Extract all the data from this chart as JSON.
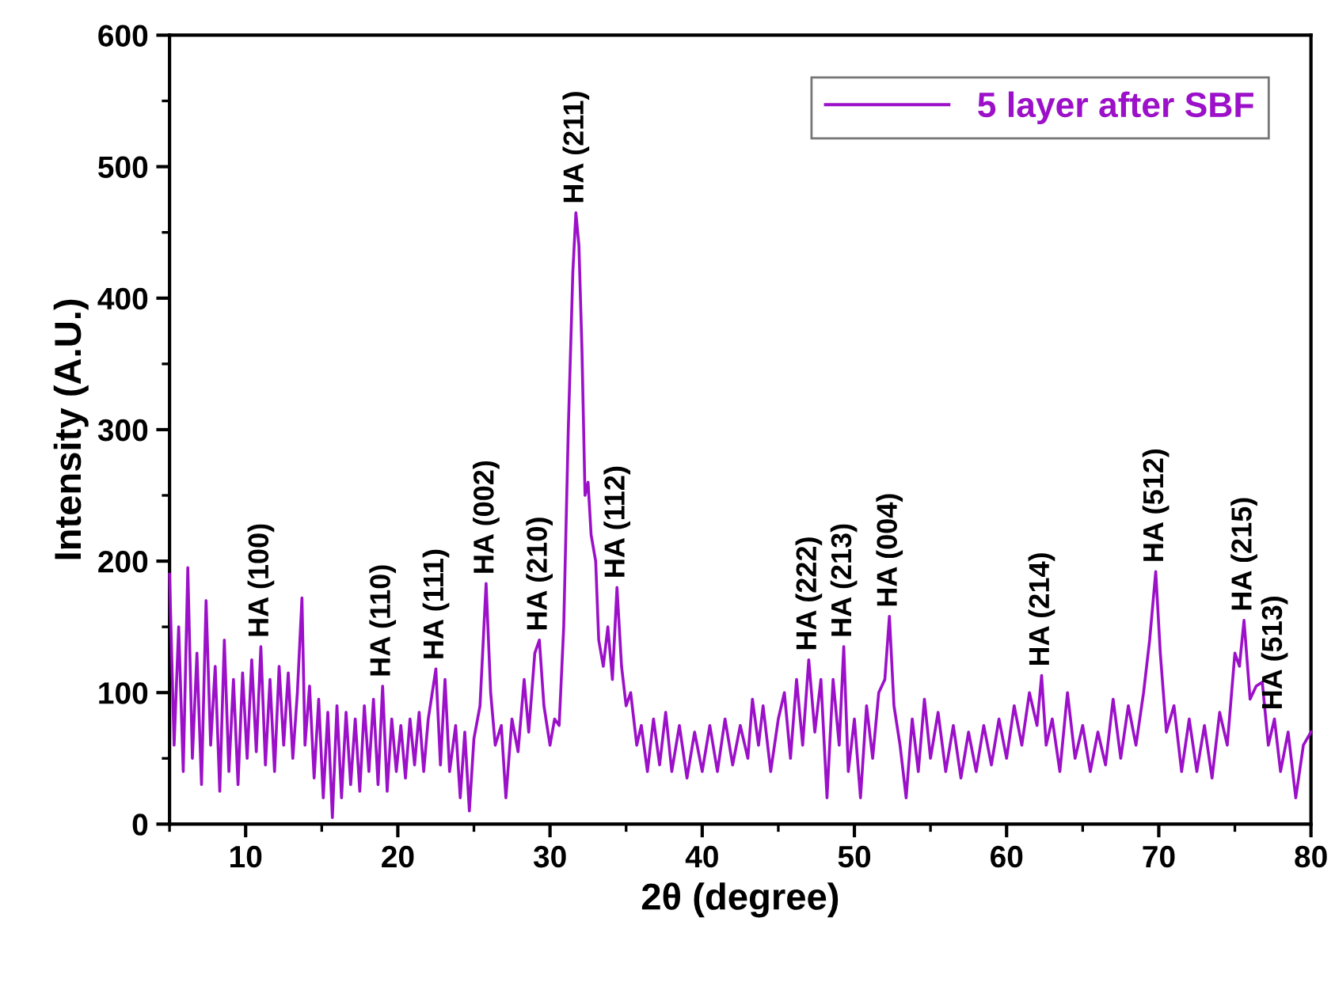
{
  "chart_data": {
    "type": "line",
    "xlabel": "2θ (degree)",
    "ylabel": "Intensity (A.U.)",
    "xlim": [
      5,
      80
    ],
    "xticks": [
      10,
      20,
      30,
      40,
      50,
      60,
      70,
      80
    ],
    "ylim": [
      0,
      600
    ],
    "yticks": [
      0,
      100,
      200,
      300,
      400,
      500,
      600
    ],
    "grid": false,
    "legend": "top right",
    "marker": "none",
    "line_style": "solid",
    "series": [
      {
        "name": "5 layer after SBF",
        "color": "#9b10c8",
        "x": [
          5,
          5.3,
          5.6,
          5.9,
          6.2,
          6.5,
          6.8,
          7.1,
          7.4,
          7.7,
          8.0,
          8.3,
          8.6,
          8.9,
          9.2,
          9.5,
          9.8,
          10.1,
          10.4,
          10.7,
          11.0,
          11.3,
          11.6,
          11.9,
          12.2,
          12.5,
          12.8,
          13.1,
          13.4,
          13.7,
          13.9,
          14.2,
          14.5,
          14.8,
          15.1,
          15.4,
          15.7,
          16.0,
          16.3,
          16.6,
          16.9,
          17.2,
          17.5,
          17.8,
          18.1,
          18.4,
          18.7,
          19.0,
          19.3,
          19.6,
          19.9,
          20.2,
          20.5,
          20.8,
          21.1,
          21.4,
          21.7,
          22.0,
          22.5,
          22.8,
          23.1,
          23.4,
          23.8,
          24.1,
          24.4,
          24.7,
          25.0,
          25.4,
          25.8,
          26.1,
          26.4,
          26.8,
          27.1,
          27.5,
          27.9,
          28.3,
          28.6,
          29.0,
          29.3,
          29.6,
          30.0,
          30.3,
          30.6,
          30.9,
          31.2,
          31.5,
          31.7,
          31.9,
          32.1,
          32.3,
          32.5,
          32.7,
          33.0,
          33.2,
          33.5,
          33.8,
          34.1,
          34.4,
          34.7,
          35.0,
          35.3,
          35.7,
          36.0,
          36.4,
          36.8,
          37.2,
          37.6,
          38.0,
          38.5,
          39.0,
          39.5,
          40.0,
          40.5,
          41.0,
          41.5,
          42.0,
          42.5,
          43.0,
          43.3,
          43.7,
          44.0,
          44.5,
          45.0,
          45.4,
          45.8,
          46.2,
          46.6,
          47.0,
          47.4,
          47.8,
          48.2,
          48.6,
          49.0,
          49.3,
          49.6,
          50.0,
          50.4,
          50.8,
          51.2,
          51.6,
          52.0,
          52.3,
          52.6,
          53.0,
          53.4,
          53.8,
          54.2,
          54.6,
          55.0,
          55.5,
          56.0,
          56.5,
          57.0,
          57.5,
          58.0,
          58.5,
          59.0,
          59.5,
          60.0,
          60.5,
          61.0,
          61.5,
          62.0,
          62.3,
          62.6,
          63.0,
          63.5,
          64.0,
          64.5,
          65.0,
          65.5,
          66.0,
          66.5,
          67.0,
          67.5,
          68.0,
          68.5,
          69.0,
          69.4,
          69.8,
          70.1,
          70.5,
          71.0,
          71.5,
          72.0,
          72.5,
          73.0,
          73.5,
          74.0,
          74.5,
          75.0,
          75.3,
          75.6,
          76.0,
          76.4,
          76.8,
          77.2,
          77.6,
          78.0,
          78.5,
          79.0,
          79.5,
          80.0
        ],
        "values": [
          190,
          60,
          150,
          40,
          195,
          50,
          130,
          30,
          170,
          60,
          120,
          25,
          140,
          40,
          110,
          30,
          115,
          50,
          125,
          55,
          135,
          45,
          110,
          40,
          120,
          60,
          115,
          50,
          100,
          172,
          60,
          105,
          35,
          95,
          20,
          85,
          5,
          90,
          20,
          85,
          30,
          80,
          25,
          90,
          40,
          95,
          30,
          105,
          25,
          80,
          40,
          75,
          35,
          80,
          45,
          85,
          40,
          80,
          118,
          45,
          110,
          40,
          75,
          20,
          70,
          10,
          65,
          90,
          183,
          100,
          60,
          75,
          20,
          80,
          55,
          110,
          70,
          130,
          140,
          90,
          60,
          80,
          75,
          150,
          300,
          420,
          465,
          440,
          360,
          250,
          260,
          220,
          200,
          140,
          120,
          150,
          110,
          180,
          120,
          90,
          100,
          60,
          75,
          40,
          80,
          45,
          85,
          40,
          75,
          35,
          70,
          40,
          75,
          40,
          80,
          45,
          75,
          50,
          95,
          60,
          90,
          40,
          80,
          100,
          50,
          110,
          60,
          125,
          70,
          110,
          20,
          110,
          60,
          135,
          40,
          80,
          20,
          90,
          50,
          100,
          110,
          158,
          90,
          60,
          20,
          80,
          40,
          95,
          50,
          85,
          40,
          75,
          35,
          70,
          40,
          75,
          45,
          80,
          50,
          90,
          60,
          100,
          75,
          113,
          60,
          80,
          40,
          100,
          50,
          75,
          40,
          70,
          45,
          95,
          50,
          90,
          60,
          100,
          140,
          192,
          130,
          70,
          90,
          40,
          80,
          40,
          75,
          35,
          85,
          60,
          130,
          120,
          155,
          95,
          105,
          108,
          60,
          80,
          40,
          70,
          20,
          60,
          70
        ]
      }
    ],
    "annotations": [
      {
        "text": "HA (100)",
        "x": 11.0,
        "y": 135
      },
      {
        "text": "HA (110)",
        "x": 19.0,
        "y": 105
      },
      {
        "text": "HA (111)",
        "x": 22.5,
        "y": 118
      },
      {
        "text": "HA (002)",
        "x": 25.8,
        "y": 183
      },
      {
        "text": "HA (210)",
        "x": 29.3,
        "y": 140
      },
      {
        "text": "HA (211)",
        "x": 31.7,
        "y": 465
      },
      {
        "text": "HA (112)",
        "x": 34.4,
        "y": 180
      },
      {
        "text": "HA (222)",
        "x": 47.0,
        "y": 125
      },
      {
        "text": "HA (213)",
        "x": 49.3,
        "y": 135
      },
      {
        "text": "HA (004)",
        "x": 52.3,
        "y": 158
      },
      {
        "text": "HA (214)",
        "x": 62.3,
        "y": 113
      },
      {
        "text": "HA (512)",
        "x": 69.8,
        "y": 192
      },
      {
        "text": "HA (215)",
        "x": 75.6,
        "y": 155
      },
      {
        "text": "HA (513)",
        "x": 77.6,
        "y": 80
      }
    ]
  }
}
